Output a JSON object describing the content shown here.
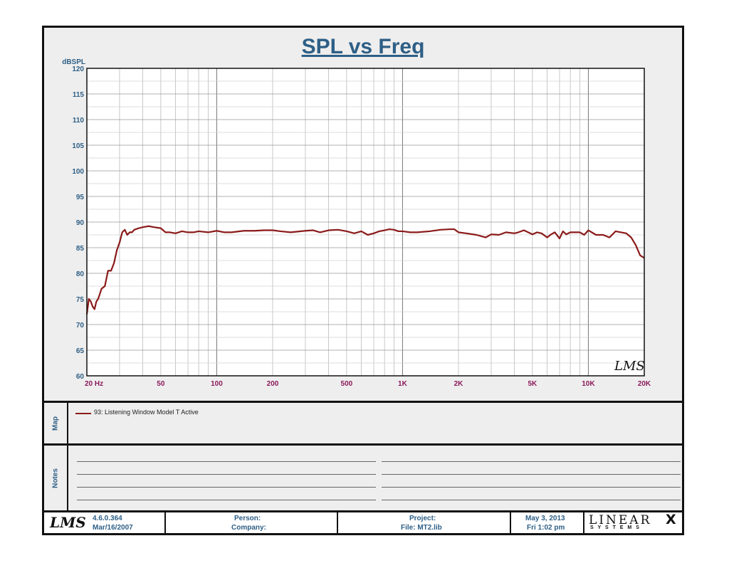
{
  "chart_data": {
    "type": "line",
    "title": "SPL vs Freq",
    "ylabel": "dBSPL",
    "xlabel": "",
    "x_scale": "log",
    "xlim": [
      20,
      20000
    ],
    "ylim": [
      60,
      120
    ],
    "y_ticks": [
      60,
      65,
      70,
      75,
      80,
      85,
      90,
      95,
      100,
      105,
      110,
      115,
      120
    ],
    "x_ticks": [
      {
        "value": 20,
        "label": "20  Hz"
      },
      {
        "value": 50,
        "label": "50"
      },
      {
        "value": 100,
        "label": "100"
      },
      {
        "value": 200,
        "label": "200"
      },
      {
        "value": 500,
        "label": "500"
      },
      {
        "value": 1000,
        "label": "1K"
      },
      {
        "value": 2000,
        "label": "2K"
      },
      {
        "value": 5000,
        "label": "5K"
      },
      {
        "value": 10000,
        "label": "10K"
      },
      {
        "value": 20000,
        "label": "20K"
      }
    ],
    "grid": true,
    "color": "#8b1a1a",
    "series": [
      {
        "name": "93: Listening Window Model T Active",
        "x": [
          20,
          20.5,
          21,
          21.5,
          22,
          22.5,
          23,
          23.5,
          24,
          25,
          26,
          27,
          28,
          29,
          30,
          31,
          32,
          33,
          34,
          35,
          36,
          38,
          40,
          43,
          46,
          50,
          53,
          56,
          60,
          65,
          70,
          75,
          80,
          90,
          100,
          110,
          120,
          140,
          160,
          180,
          200,
          220,
          250,
          300,
          330,
          360,
          400,
          450,
          500,
          550,
          600,
          650,
          700,
          750,
          800,
          850,
          900,
          950,
          1000,
          1100,
          1200,
          1400,
          1600,
          1800,
          1900,
          2000,
          2200,
          2500,
          2800,
          3000,
          3300,
          3600,
          4000,
          4200,
          4500,
          5000,
          5300,
          5600,
          6000,
          6300,
          6600,
          7000,
          7300,
          7600,
          8000,
          8500,
          9000,
          9500,
          10000,
          11000,
          12000,
          13000,
          14000,
          15000,
          16000,
          17000,
          18000,
          19000,
          20000
        ],
        "y": [
          72,
          75,
          74.5,
          73.5,
          73,
          74.5,
          75,
          76,
          77,
          77.5,
          80.5,
          80.5,
          82,
          84.5,
          86,
          88,
          88.5,
          87.5,
          88,
          88,
          88.5,
          88.8,
          89,
          89.2,
          89,
          88.8,
          88,
          88,
          87.8,
          88.2,
          88,
          88,
          88.2,
          88,
          88.3,
          88,
          88,
          88.3,
          88.3,
          88.4,
          88.4,
          88.2,
          88,
          88.3,
          88.4,
          88,
          88.4,
          88.5,
          88.2,
          87.8,
          88.2,
          87.5,
          87.8,
          88.2,
          88.4,
          88.6,
          88.5,
          88.2,
          88.2,
          88,
          88,
          88.2,
          88.5,
          88.6,
          88.6,
          88,
          87.8,
          87.5,
          87,
          87.6,
          87.5,
          88,
          87.8,
          88,
          88.4,
          87.6,
          88,
          87.8,
          87,
          87.6,
          88,
          86.8,
          88.2,
          87.6,
          88,
          88,
          88,
          87.5,
          88.4,
          87.5,
          87.5,
          87,
          88.2,
          88,
          87.8,
          87,
          85.5,
          83.5,
          83
        ]
      }
    ]
  },
  "map": {
    "label": "Map",
    "entry": "93: Listening Window Model T Active"
  },
  "notes": {
    "label": "Notes"
  },
  "footer": {
    "version": "4.6.0.364",
    "build_date": "Mar/16/2007",
    "person_label": "Person:",
    "company_label": "Company:",
    "project_label": "Project:",
    "file_label": "File: MT2.lib",
    "date": "May  3, 2013",
    "time": "Fri  1:02 pm",
    "brand_top": "LINEAR",
    "brand_x": "X",
    "brand_bottom": "S  Y  S  T  E  M  S",
    "lms_logo": "LMS"
  }
}
